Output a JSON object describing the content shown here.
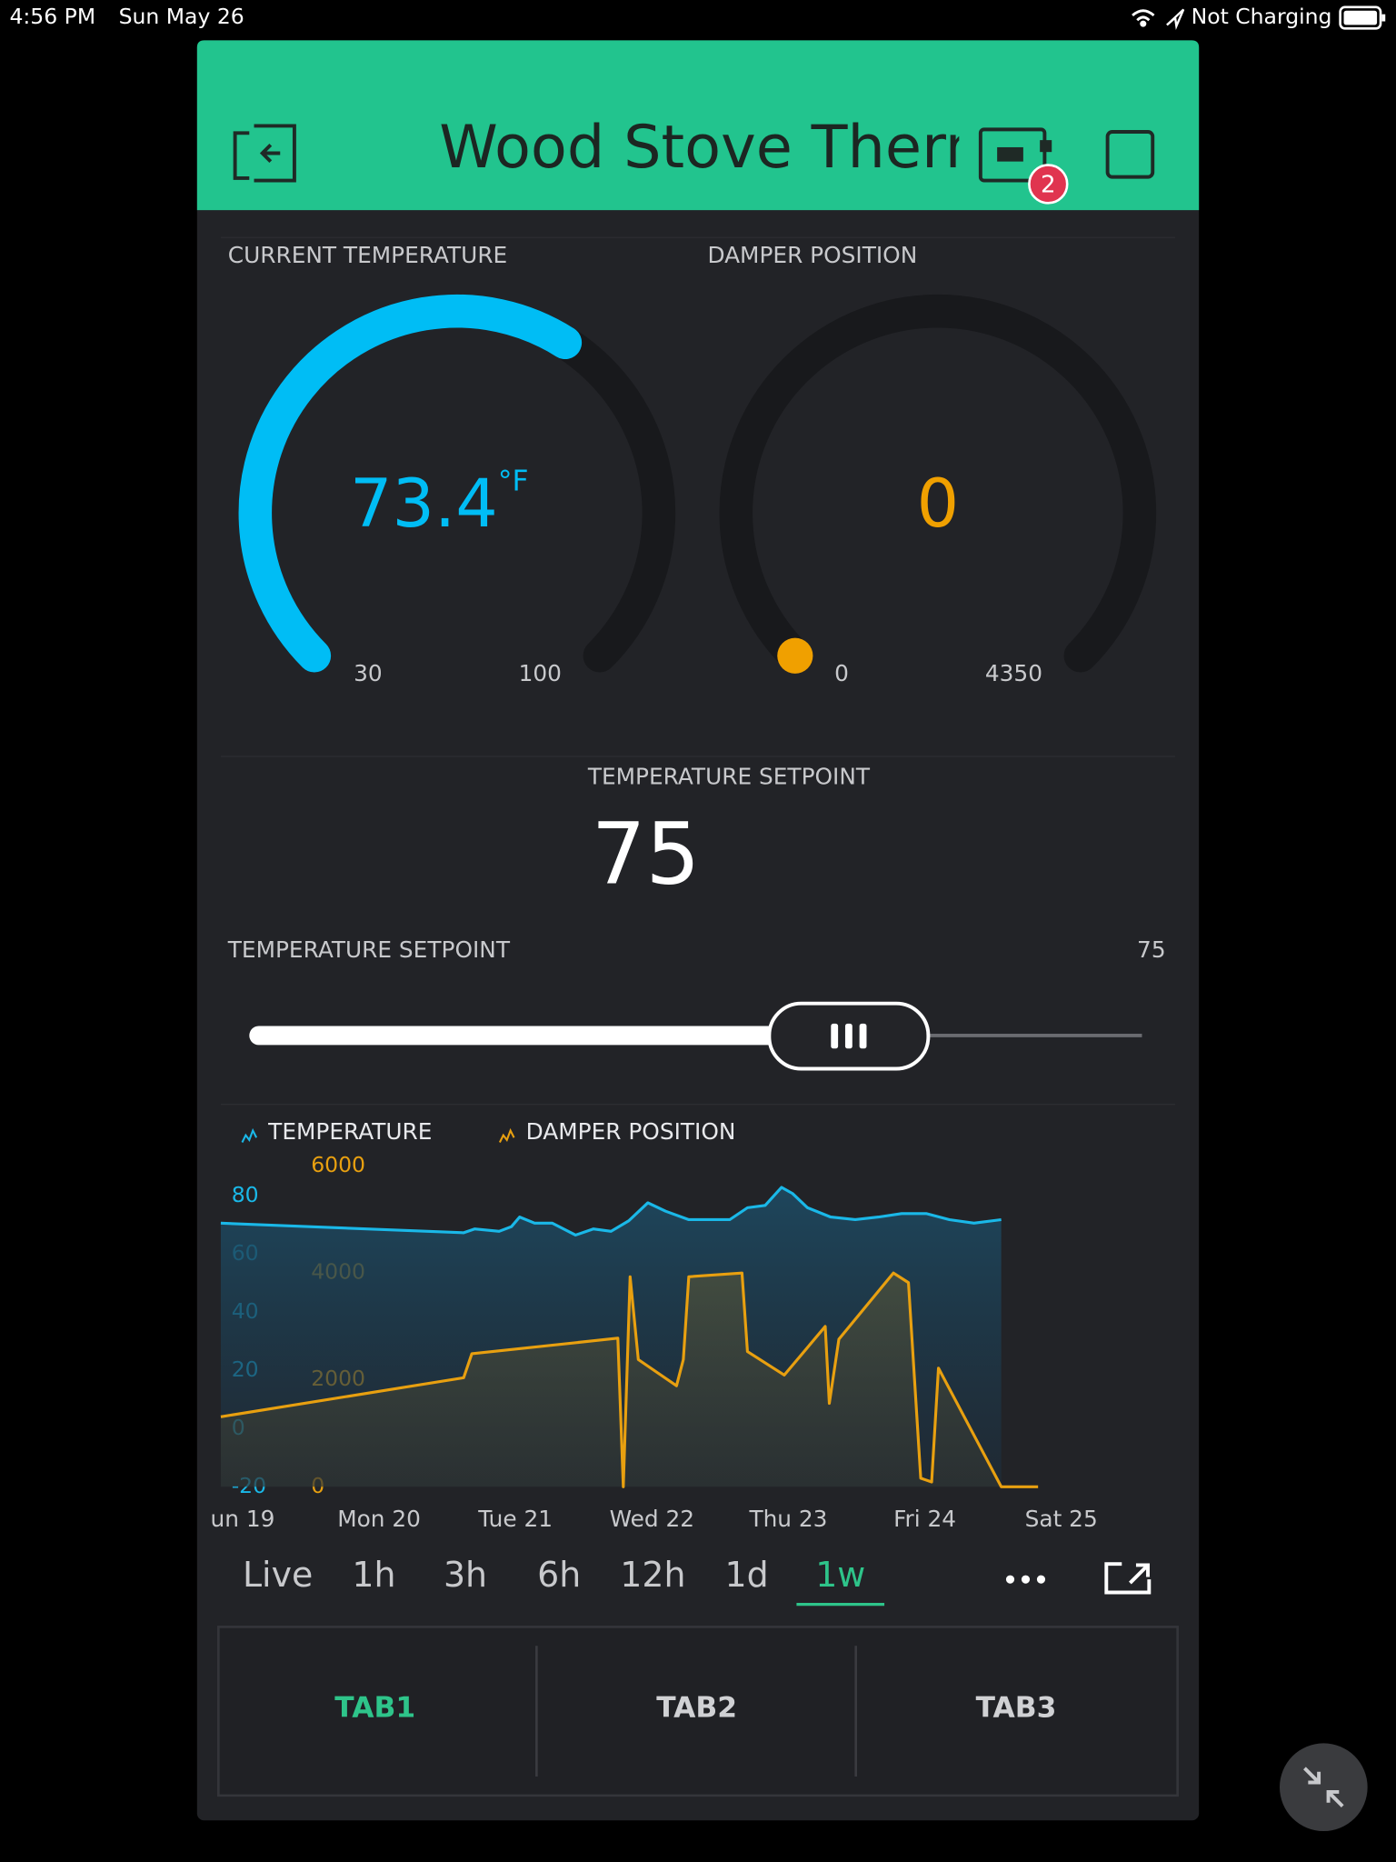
{
  "status_bar": {
    "time": "4:56 PM",
    "date": "Sun May 26",
    "battery": "Not Charging"
  },
  "header": {
    "title": "Wood Stove Thermo",
    "badge": "2"
  },
  "gauges": [
    {
      "label": "CURRENT TEMPERATURE",
      "value": 73.4,
      "unit": "°F",
      "min": 30,
      "max": 100,
      "color": "#00bdf5"
    },
    {
      "label": "DAMPER POSITION",
      "value": 0,
      "min": 0,
      "max": 4350,
      "color": "#f0a000"
    }
  ],
  "value_display": {
    "label": "TEMPERATURE SETPOINT",
    "value": 75
  },
  "slider": {
    "label": "TEMPERATURE SETPOINT",
    "value": 75
  },
  "chart_data": {
    "type": "line",
    "area": true,
    "grid": false,
    "xlim": [
      18.84,
      25.3
    ],
    "xticks": [
      {
        "value": 19,
        "label": "un 19"
      },
      {
        "value": 20,
        "label": "Mon 20"
      },
      {
        "value": 21,
        "label": "Tue 21"
      },
      {
        "value": 22,
        "label": "Wed 22"
      },
      {
        "value": 23,
        "label": "Thu 23"
      },
      {
        "value": 24,
        "label": "Fri 24"
      },
      {
        "value": 25,
        "label": "Sat 25"
      }
    ],
    "ylim": [
      -20,
      90.2
    ],
    "yticks": [
      -20,
      0,
      20,
      40,
      60,
      80
    ],
    "y2lim": [
      0,
      6000
    ],
    "y2ticks": [
      0,
      2000,
      4000,
      6000
    ],
    "series": [
      {
        "name": "TEMPERATURE",
        "color": "#1ab8e8",
        "x": [
          18.84,
          20.62,
          20.7,
          20.88,
          20.97,
          21.03,
          21.14,
          21.27,
          21.44,
          21.57,
          21.7,
          21.83,
          21.97,
          22.1,
          22.27,
          22.57,
          22.7,
          22.83,
          22.95,
          23.03,
          23.14,
          23.31,
          23.49,
          23.66,
          23.83,
          24.01,
          24.18,
          24.36,
          24.56
        ],
        "values": [
          70.6,
          67.3,
          68.6,
          67.8,
          69.4,
          72.7,
          70.6,
          70.6,
          66.5,
          68.6,
          67.8,
          71.4,
          77.6,
          74.7,
          71.8,
          71.8,
          75.9,
          76.7,
          82.9,
          80.8,
          75.9,
          72.7,
          71.8,
          72.7,
          73.9,
          73.9,
          71.8,
          70.6,
          71.8
        ]
      },
      {
        "name": "DAMPER POSITION",
        "color": "#e8a010",
        "axis": "y2",
        "x": [
          18.84,
          20.62,
          20.68,
          21.75,
          21.79,
          21.84,
          21.9,
          22.18,
          22.23,
          22.27,
          22.66,
          22.7,
          22.97,
          23.27,
          23.3,
          23.37,
          23.77,
          23.88,
          23.97,
          24.05,
          24.1,
          24.56,
          24.83
        ],
        "values": [
          1310,
          2040,
          2490,
          2780,
          0,
          3930,
          2380,
          1890,
          2380,
          3930,
          4000,
          2530,
          2090,
          3000,
          1560,
          2760,
          4000,
          3820,
          160,
          90,
          2220,
          0,
          0
        ]
      }
    ]
  },
  "time_ranges": [
    {
      "label": "Live",
      "selected": false
    },
    {
      "label": "1h",
      "selected": false
    },
    {
      "label": "3h",
      "selected": false
    },
    {
      "label": "6h",
      "selected": false
    },
    {
      "label": "12h",
      "selected": false
    },
    {
      "label": "1d",
      "selected": false
    },
    {
      "label": "1w",
      "selected": true
    }
  ],
  "tabs": [
    {
      "label": "TAB1",
      "selected": true
    },
    {
      "label": "TAB2",
      "selected": false
    },
    {
      "label": "TAB3",
      "selected": false
    }
  ]
}
